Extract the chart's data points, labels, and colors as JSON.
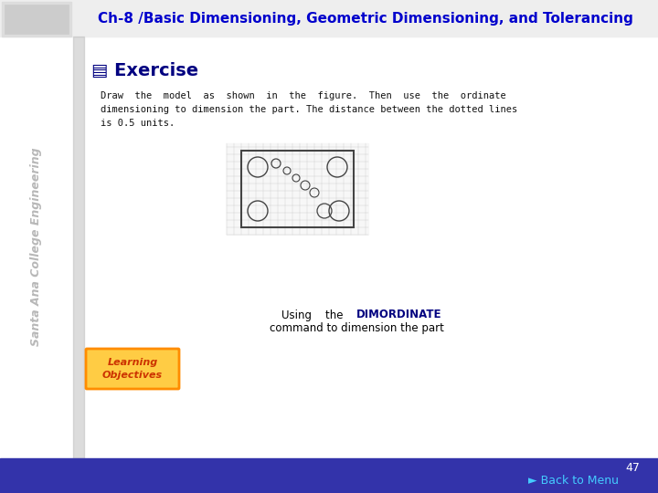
{
  "title": "Ch-8 /Basic Dimensioning, Geometric Dimensioning, and Tolerancing",
  "title_color": "#0000CC",
  "bg_color": "#FFFFFF",
  "bottom_bar_color": "#3333AA",
  "exercise_label": "▤ Exercise",
  "exercise_color": "#000080",
  "body_line1": "Draw  the  model  as  shown  in  the  figure.  Then  use  the  ordinate",
  "body_line2": "dimensioning to dimension the part. The distance between the dotted lines",
  "body_line3": "is 0.5 units.",
  "caption_line1": "Using    the    DIMORDINATE",
  "caption_line2": "command to dimension the part",
  "page_number": "47",
  "back_to_menu": "► Back to Menu",
  "learning_text": "Learning\nObjectives",
  "lo_bg": "#FFD700",
  "lo_border": "#FF8C00",
  "lo_text_color": "#CC3300",
  "grid_color": "#CCCCCC",
  "rect_color": "#444444",
  "circle_color": "#444444",
  "sidebar_text_color": "#888888"
}
